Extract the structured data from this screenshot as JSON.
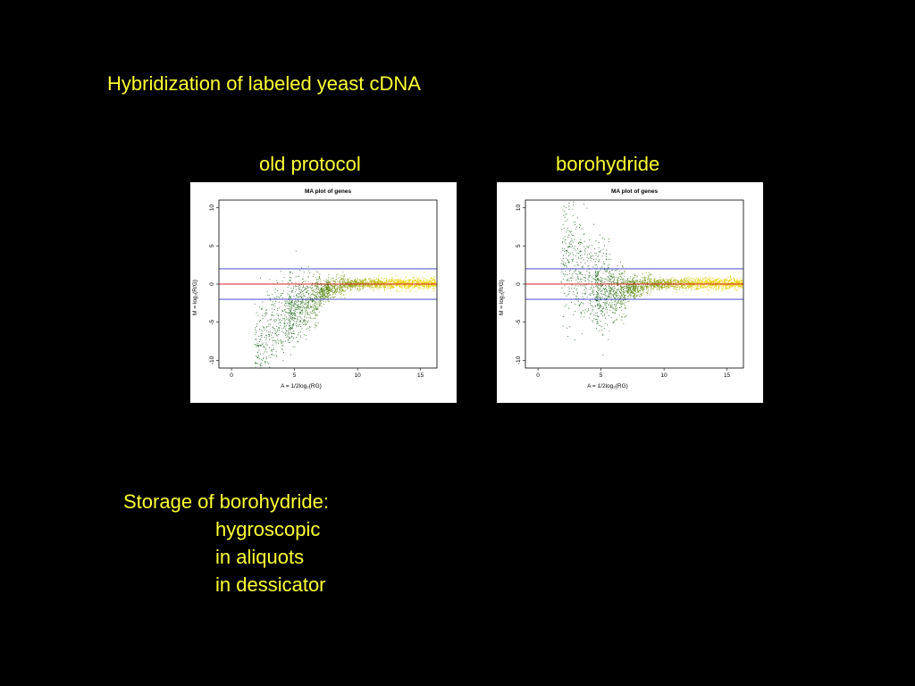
{
  "slide": {
    "title": "Hybridization of labeled yeast cDNA",
    "notes_heading": "Storage of borohydride:",
    "notes_items": [
      "hygroscopic",
      "in aliquots",
      "in dessicator"
    ]
  },
  "colors": {
    "background": "#000000",
    "text": "#ffff33",
    "threshold_line": "#3333cc",
    "zero_line": "#dd2222",
    "points_low": "#1f6b1f",
    "points_high": "#e6d200"
  },
  "chart_data": [
    {
      "type": "scatter",
      "panel_label": "old protocol",
      "title": "MA plot of genes",
      "xlabel": "A = 1/2log₂(RG)",
      "ylabel": "M = log₂(R/G)",
      "xlim": [
        -1,
        16.3
      ],
      "ylim": [
        -11,
        11
      ],
      "xticks": [
        0,
        5,
        10,
        15
      ],
      "yticks": [
        -10,
        -5,
        0,
        5,
        10
      ],
      "reference_lines": [
        {
          "y": 2,
          "color": "blue"
        },
        {
          "y": 0,
          "color": "red"
        },
        {
          "y": -2,
          "color": "blue"
        }
      ],
      "trend": {
        "x": [
          2,
          3,
          4,
          5,
          6,
          7,
          8,
          9,
          10,
          12,
          14,
          16
        ],
        "y": [
          -8.5,
          -6.5,
          -4.5,
          -3.5,
          -2.5,
          -1.2,
          -0.4,
          0,
          0.1,
          0.1,
          0.1,
          0.1
        ]
      },
      "grid": false,
      "legend": "none"
    },
    {
      "type": "scatter",
      "panel_label": "borohydride",
      "title": "MA plot of genes",
      "xlabel": "A = 1/2log₂(RG)",
      "ylabel": "M = log₂(R/G)",
      "xlim": [
        -1,
        16.3
      ],
      "ylim": [
        -11,
        11
      ],
      "xticks": [
        0,
        5,
        10,
        15
      ],
      "yticks": [
        -10,
        -5,
        0,
        5,
        10
      ],
      "reference_lines": [
        {
          "y": 2,
          "color": "blue"
        },
        {
          "y": 0,
          "color": "red"
        },
        {
          "y": -2,
          "color": "blue"
        }
      ],
      "trend": {
        "x": [
          2,
          3,
          4,
          5,
          6,
          7,
          8,
          9,
          10,
          12,
          14,
          16
        ],
        "y": [
          4,
          2,
          0.5,
          -0.8,
          -1.0,
          -0.5,
          -0.2,
          0,
          0.1,
          0.1,
          0.1,
          0.1
        ]
      },
      "grid": false,
      "legend": "none"
    }
  ]
}
